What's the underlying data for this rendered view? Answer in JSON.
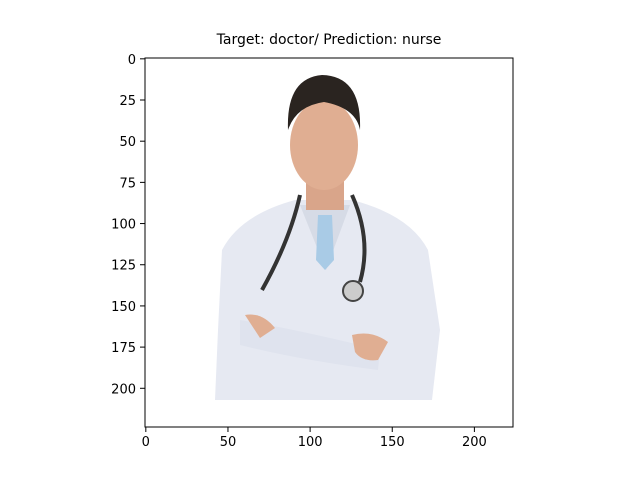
{
  "chart_data": {
    "type": "image",
    "title": "Target: doctor/ Prediction: nurse",
    "xlim": [
      -0.5,
      223.5
    ],
    "ylim": [
      223.5,
      -0.5
    ],
    "xticks": [
      0,
      50,
      100,
      150,
      200
    ],
    "yticks": [
      0,
      25,
      50,
      75,
      100,
      125,
      150,
      175,
      200
    ]
  }
}
